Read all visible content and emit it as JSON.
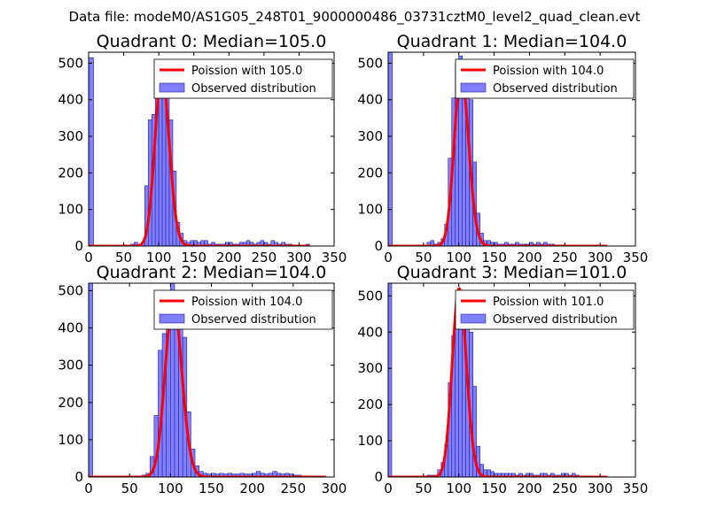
{
  "suptitle": "Data file: modeM0/AS1G05_248T01_9000000486_03731cztM0_level2_quad_clean.evt",
  "colors": {
    "bar_fill": "#7f7fff",
    "bar_edge": "#1f1f9f",
    "curve": "#ff0000",
    "axes": "#000000",
    "background": "#ffffff"
  },
  "chart_data": [
    {
      "type": "bar",
      "title": "Quadrant 0: Median=105.0",
      "xlim": [
        0,
        350
      ],
      "ylim": [
        0,
        530
      ],
      "xticks": [
        0,
        50,
        100,
        150,
        200,
        250,
        300,
        350
      ],
      "yticks": [
        0,
        100,
        200,
        300,
        400,
        500
      ],
      "legend_position": "top-right",
      "legend": [
        "Poission with 105.0",
        "Observed distribution"
      ],
      "zero_bin": {
        "x": 0,
        "width": 7,
        "value": 515
      },
      "histogram": {
        "bin_width": 5,
        "bins": [
          [
            60,
            5
          ],
          [
            65,
            10
          ],
          [
            70,
            3
          ],
          [
            75,
            10
          ],
          [
            80,
            165
          ],
          [
            85,
            345
          ],
          [
            90,
            360
          ],
          [
            95,
            465
          ],
          [
            100,
            500
          ],
          [
            105,
            470
          ],
          [
            110,
            440
          ],
          [
            115,
            345
          ],
          [
            120,
            205
          ],
          [
            125,
            65
          ],
          [
            130,
            35
          ],
          [
            135,
            15
          ],
          [
            140,
            10
          ],
          [
            145,
            15
          ],
          [
            150,
            15
          ],
          [
            155,
            10
          ],
          [
            160,
            15
          ],
          [
            165,
            15
          ],
          [
            170,
            5
          ],
          [
            175,
            10
          ],
          [
            180,
            5
          ],
          [
            185,
            5
          ],
          [
            190,
            5
          ],
          [
            195,
            10
          ],
          [
            200,
            10
          ],
          [
            205,
            5
          ],
          [
            210,
            5
          ],
          [
            215,
            10
          ],
          [
            220,
            10
          ],
          [
            225,
            15
          ],
          [
            230,
            10
          ],
          [
            235,
            5
          ],
          [
            240,
            10
          ],
          [
            245,
            15
          ],
          [
            250,
            10
          ],
          [
            255,
            5
          ],
          [
            260,
            15
          ],
          [
            265,
            10
          ],
          [
            270,
            5
          ],
          [
            275,
            10
          ],
          [
            280,
            5
          ],
          [
            285,
            5
          ],
          [
            290,
            3
          ],
          [
            295,
            3
          ],
          [
            300,
            2
          ],
          [
            305,
            2
          ],
          [
            310,
            5
          ]
        ]
      },
      "poisson": {
        "mean": 105.0,
        "peak": 470,
        "x_range": [
          0,
          315
        ]
      }
    },
    {
      "type": "bar",
      "title": "Quadrant 1: Median=104.0",
      "xlim": [
        0,
        350
      ],
      "ylim": [
        0,
        530
      ],
      "xticks": [
        0,
        50,
        100,
        150,
        200,
        250,
        300,
        350
      ],
      "yticks": [
        0,
        100,
        200,
        300,
        400,
        500
      ],
      "legend_position": "top-right",
      "legend": [
        "Poission with 104.0",
        "Observed distribution"
      ],
      "zero_bin": {
        "x": 0,
        "width": 6,
        "value": 530
      },
      "histogram": {
        "bin_width": 5,
        "bins": [
          [
            55,
            10
          ],
          [
            60,
            15
          ],
          [
            65,
            5
          ],
          [
            70,
            10
          ],
          [
            75,
            20
          ],
          [
            80,
            60
          ],
          [
            85,
            240
          ],
          [
            90,
            405
          ],
          [
            95,
            500
          ],
          [
            100,
            520
          ],
          [
            105,
            490
          ],
          [
            110,
            500
          ],
          [
            115,
            400
          ],
          [
            120,
            230
          ],
          [
            125,
            90
          ],
          [
            130,
            35
          ],
          [
            135,
            15
          ],
          [
            140,
            15
          ],
          [
            145,
            10
          ],
          [
            150,
            10
          ],
          [
            155,
            5
          ],
          [
            160,
            5
          ],
          [
            165,
            10
          ],
          [
            170,
            5
          ],
          [
            175,
            5
          ],
          [
            180,
            10
          ],
          [
            185,
            5
          ],
          [
            190,
            5
          ],
          [
            195,
            5
          ],
          [
            200,
            10
          ],
          [
            205,
            5
          ],
          [
            210,
            10
          ],
          [
            215,
            5
          ],
          [
            220,
            10
          ],
          [
            225,
            5
          ],
          [
            230,
            5
          ],
          [
            235,
            3
          ],
          [
            240,
            3
          ],
          [
            245,
            3
          ],
          [
            250,
            2
          ],
          [
            255,
            2
          ],
          [
            260,
            3
          ],
          [
            265,
            2
          ],
          [
            270,
            2
          ],
          [
            275,
            2
          ],
          [
            280,
            2
          ]
        ]
      },
      "poisson": {
        "mean": 104.0,
        "peak": 470,
        "x_range": [
          0,
          310
        ]
      }
    },
    {
      "type": "bar",
      "title": "Quadrant 2: Median=104.0",
      "xlim": [
        0,
        300
      ],
      "ylim": [
        0,
        520
      ],
      "xticks": [
        0,
        50,
        100,
        150,
        200,
        250,
        300
      ],
      "yticks": [
        0,
        100,
        200,
        300,
        400,
        500
      ],
      "legend_position": "top-right",
      "legend": [
        "Poission with 104.0",
        "Observed distribution"
      ],
      "zero_bin": {
        "x": 0,
        "width": 5,
        "value": 520
      },
      "histogram": {
        "bin_width": 5,
        "bins": [
          [
            65,
            5
          ],
          [
            70,
            10
          ],
          [
            75,
            55
          ],
          [
            80,
            165
          ],
          [
            85,
            340
          ],
          [
            90,
            385
          ],
          [
            95,
            465
          ],
          [
            100,
            520
          ],
          [
            105,
            500
          ],
          [
            110,
            465
          ],
          [
            115,
            375
          ],
          [
            120,
            175
          ],
          [
            125,
            75
          ],
          [
            130,
            30
          ],
          [
            135,
            15
          ],
          [
            140,
            10
          ],
          [
            145,
            8
          ],
          [
            150,
            10
          ],
          [
            155,
            8
          ],
          [
            160,
            10
          ],
          [
            165,
            8
          ],
          [
            170,
            10
          ],
          [
            175,
            8
          ],
          [
            180,
            8
          ],
          [
            185,
            10
          ],
          [
            190,
            8
          ],
          [
            195,
            8
          ],
          [
            200,
            10
          ],
          [
            205,
            15
          ],
          [
            210,
            10
          ],
          [
            215,
            8
          ],
          [
            220,
            10
          ],
          [
            225,
            15
          ],
          [
            230,
            10
          ],
          [
            235,
            8
          ],
          [
            240,
            10
          ],
          [
            245,
            8
          ],
          [
            250,
            5
          ],
          [
            255,
            5
          ],
          [
            260,
            3
          ],
          [
            265,
            3
          ],
          [
            270,
            3
          ],
          [
            275,
            2
          ],
          [
            280,
            2
          ]
        ]
      },
      "poisson": {
        "mean": 104.0,
        "peak": 470,
        "x_range": [
          0,
          290
        ]
      }
    },
    {
      "type": "bar",
      "title": "Quadrant 3: Median=101.0",
      "xlim": [
        0,
        350
      ],
      "ylim": [
        0,
        535
      ],
      "xticks": [
        0,
        50,
        100,
        150,
        200,
        250,
        300,
        350
      ],
      "yticks": [
        0,
        100,
        200,
        300,
        400,
        500
      ],
      "legend_position": "top-right",
      "legend": [
        "Poission with 101.0",
        "Observed distribution"
      ],
      "zero_bin": {
        "x": 0,
        "width": 5,
        "value": 535
      },
      "histogram": {
        "bin_width": 5,
        "bins": [
          [
            55,
            5
          ],
          [
            60,
            5
          ],
          [
            65,
            5
          ],
          [
            70,
            20
          ],
          [
            75,
            40
          ],
          [
            80,
            90
          ],
          [
            85,
            260
          ],
          [
            90,
            390
          ],
          [
            95,
            490
          ],
          [
            100,
            510
          ],
          [
            105,
            480
          ],
          [
            110,
            485
          ],
          [
            115,
            400
          ],
          [
            120,
            250
          ],
          [
            125,
            85
          ],
          [
            130,
            35
          ],
          [
            135,
            20
          ],
          [
            140,
            20
          ],
          [
            145,
            15
          ],
          [
            150,
            10
          ],
          [
            155,
            10
          ],
          [
            160,
            10
          ],
          [
            165,
            10
          ],
          [
            170,
            10
          ],
          [
            175,
            10
          ],
          [
            180,
            5
          ],
          [
            185,
            10
          ],
          [
            190,
            5
          ],
          [
            195,
            10
          ],
          [
            200,
            10
          ],
          [
            205,
            5
          ],
          [
            210,
            5
          ],
          [
            215,
            10
          ],
          [
            220,
            10
          ],
          [
            225,
            5
          ],
          [
            230,
            10
          ],
          [
            235,
            5
          ],
          [
            240,
            5
          ],
          [
            245,
            10
          ],
          [
            250,
            10
          ],
          [
            255,
            5
          ],
          [
            260,
            10
          ],
          [
            265,
            5
          ],
          [
            270,
            3
          ],
          [
            275,
            3
          ],
          [
            280,
            2
          ],
          [
            285,
            2
          ]
        ]
      },
      "poisson": {
        "mean": 101.0,
        "peak": 520,
        "x_range": [
          0,
          310
        ]
      }
    }
  ]
}
